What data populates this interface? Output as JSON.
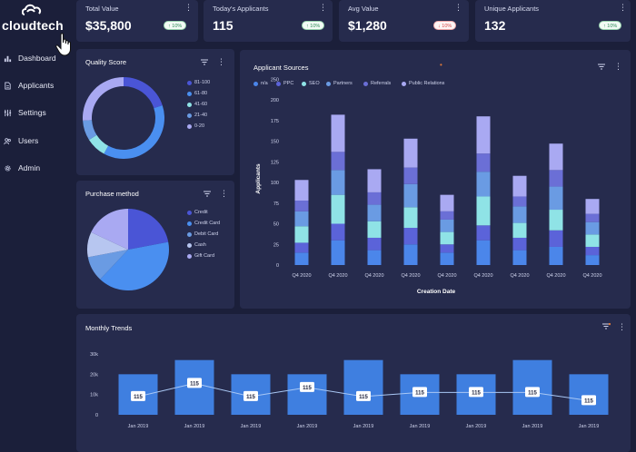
{
  "brand": {
    "name": "cloudtech"
  },
  "sidebar": {
    "items": [
      {
        "label": "Dashboard",
        "icon": "bar-chart-icon"
      },
      {
        "label": "Applicants",
        "icon": "document-icon"
      },
      {
        "label": "Settings",
        "icon": "sliders-icon"
      },
      {
        "label": "Users",
        "icon": "users-icon"
      },
      {
        "label": "Admin",
        "icon": "gear-icon"
      }
    ]
  },
  "kpis": [
    {
      "label": "Total Value",
      "value": "$35,800",
      "change": "↑ 10%",
      "trend": "up"
    },
    {
      "label": "Today's Applicants",
      "value": "115",
      "change": "↑ 10%",
      "trend": "up"
    },
    {
      "label": "Avg Value",
      "value": "$1,280",
      "change": "↓ 10%",
      "trend": "down"
    },
    {
      "label": "Unique Applicants",
      "value": "132",
      "change": "↑ 10%",
      "trend": "up"
    }
  ],
  "quality_score": {
    "title": "Quality Score",
    "legend": [
      "81-100",
      "61-80",
      "41-60",
      "21-40",
      "0-20"
    ]
  },
  "purchase_method": {
    "title": "Purchase method",
    "legend": [
      "Credit",
      "Credit Card",
      "Debit Card",
      "Cash",
      "Gift Card"
    ]
  },
  "applicant_sources": {
    "title": "Applicant Sources",
    "legend": [
      "n/a",
      "PPC",
      "SEO",
      "Partners",
      "Referrals",
      "Public Relations"
    ],
    "xlabel": "Creation Date",
    "ylabel": "Applicants"
  },
  "monthly_trends": {
    "title": "Monthly Trends"
  },
  "colors": {
    "background": "#1b1f3a",
    "card": "#262b4d",
    "series": [
      "#4b86ea",
      "#5b63d9",
      "#8fe3e6",
      "#6a9be3",
      "#6b6fd6",
      "#a9a9f2"
    ],
    "positive": "#2e8b57",
    "negative": "#d84a4a"
  },
  "chart_data": [
    {
      "type": "pie",
      "title": "Quality Score",
      "donut": true,
      "categories": [
        "81-100",
        "61-80",
        "41-60",
        "21-40",
        "0-20"
      ],
      "values": [
        20,
        38,
        8,
        8,
        26
      ],
      "colors": [
        "#4a55d6",
        "#4a8ff0",
        "#8fe3e6",
        "#6a9be3",
        "#a9a9f2"
      ]
    },
    {
      "type": "pie",
      "title": "Purchase method",
      "categories": [
        "Credit",
        "Credit Card",
        "Debit Card",
        "Cash",
        "Gift Card"
      ],
      "values": [
        22,
        40,
        10,
        10,
        18
      ],
      "colors": [
        "#4a55d6",
        "#4a8ff0",
        "#6a9be3",
        "#b7c6f0",
        "#a9a9f2"
      ]
    },
    {
      "type": "bar",
      "stacked": true,
      "title": "Applicant Sources",
      "categories": [
        "Q4 2020",
        "Q4 2020",
        "Q4 2020",
        "Q4 2020",
        "Q4 2020",
        "Q4 2020",
        "Q4 2020",
        "Q4 2020",
        "Q4 2020"
      ],
      "series": [
        {
          "name": "n/a",
          "values": [
            15,
            30,
            18,
            25,
            15,
            30,
            18,
            22,
            12
          ],
          "color": "#4b86ea"
        },
        {
          "name": "PPC",
          "values": [
            12,
            20,
            15,
            20,
            10,
            18,
            15,
            20,
            10
          ],
          "color": "#5b63d9"
        },
        {
          "name": "SEO",
          "values": [
            20,
            35,
            20,
            25,
            15,
            35,
            18,
            25,
            15
          ],
          "color": "#8fe3e6"
        },
        {
          "name": "Partners",
          "values": [
            18,
            30,
            20,
            28,
            15,
            30,
            20,
            28,
            15
          ],
          "color": "#6a9be3"
        },
        {
          "name": "Referrals",
          "values": [
            13,
            22,
            15,
            20,
            10,
            22,
            12,
            20,
            10
          ],
          "color": "#6b6fd6"
        },
        {
          "name": "Public Relations",
          "values": [
            25,
            45,
            28,
            35,
            20,
            45,
            25,
            32,
            18
          ],
          "color": "#a9a9f2"
        }
      ],
      "xlabel": "Creation Date",
      "ylabel": "Applicants",
      "ylim": [
        0,
        250
      ],
      "yticks": [
        0,
        25,
        50,
        75,
        100,
        125,
        150,
        175,
        200,
        250
      ]
    },
    {
      "type": "bar",
      "title": "Monthly Trends",
      "categories": [
        "Jan 2019",
        "Jan 2019",
        "Jan 2019",
        "Jan 2019",
        "Jan 2019",
        "Jan 2019",
        "Jan 2019",
        "Jan 2019",
        "Jan 2019"
      ],
      "values": [
        20000,
        27000,
        20000,
        20000,
        27000,
        20000,
        20000,
        27000,
        20000
      ],
      "line_values": [
        9000,
        15500,
        9000,
        13500,
        9000,
        11000,
        11000,
        11000,
        7000
      ],
      "line_labels": [
        "115",
        "115",
        "115",
        "115",
        "115",
        "115",
        "115",
        "115",
        "115"
      ],
      "ylim": [
        0,
        30000
      ],
      "yticks": [
        "0",
        "10k",
        "20k",
        "30k"
      ]
    }
  ]
}
